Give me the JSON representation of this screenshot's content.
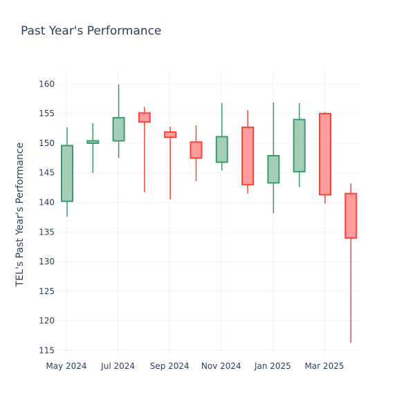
{
  "chart_data": {
    "type": "candlestick",
    "title": "Past Year's Performance",
    "xlabel": "",
    "ylabel": "TEL's Past Year's Performance",
    "x_tick_labels": [
      "May 2024",
      "Jul 2024",
      "Sep 2024",
      "Nov 2024",
      "Jan 2025",
      "Mar 2025"
    ],
    "y_ticks": [
      115,
      120,
      125,
      130,
      135,
      140,
      145,
      150,
      155,
      160
    ],
    "ylim": [
      114,
      162.5
    ],
    "grid": true,
    "colors": {
      "increasing_fill": "#a3cfb8",
      "increasing_line": "#3d9970",
      "decreasing_fill": "#ff9c9c",
      "decreasing_line": "#ff4136",
      "title": "#2a3f5f",
      "grid": "#f0f2f7"
    },
    "candles": [
      {
        "month": "2024-05",
        "open": 140.2,
        "high": 152.7,
        "low": 137.6,
        "close": 149.6
      },
      {
        "month": "2024-06",
        "open": 150.0,
        "high": 153.4,
        "low": 145.0,
        "close": 150.4
      },
      {
        "month": "2024-07",
        "open": 150.4,
        "high": 159.9,
        "low": 147.5,
        "close": 154.3
      },
      {
        "month": "2024-08",
        "open": 155.1,
        "high": 156.1,
        "low": 141.7,
        "close": 153.6
      },
      {
        "month": "2024-09",
        "open": 151.9,
        "high": 152.8,
        "low": 140.5,
        "close": 151.0
      },
      {
        "month": "2024-10",
        "open": 150.2,
        "high": 153.0,
        "low": 143.6,
        "close": 147.5
      },
      {
        "month": "2024-11",
        "open": 146.8,
        "high": 156.8,
        "low": 145.4,
        "close": 151.1
      },
      {
        "month": "2024-12",
        "open": 152.7,
        "high": 155.6,
        "low": 141.5,
        "close": 143.0
      },
      {
        "month": "2025-01",
        "open": 143.3,
        "high": 156.9,
        "low": 138.2,
        "close": 147.9
      },
      {
        "month": "2025-02",
        "open": 145.2,
        "high": 156.8,
        "low": 142.6,
        "close": 154.0
      },
      {
        "month": "2025-03",
        "open": 155.0,
        "high": 155.3,
        "low": 139.8,
        "close": 141.3
      },
      {
        "month": "2025-04",
        "open": 141.5,
        "high": 143.2,
        "low": 116.3,
        "close": 134.0
      }
    ]
  }
}
